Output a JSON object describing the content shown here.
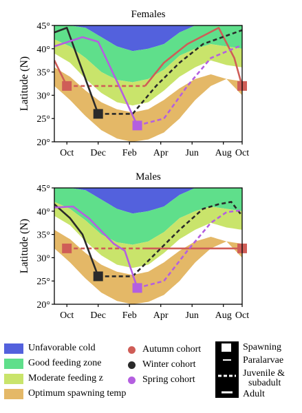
{
  "colors": {
    "unfavorable": "#5361dd",
    "good": "#5fdf8b",
    "moderate": "#c9e46b",
    "optimum": "#e4b867",
    "autumn": "#cf5d57",
    "winter": "#2a2a2a",
    "spring": "#b45fe0"
  },
  "chart_data": [
    {
      "type": "line",
      "title": "Females",
      "ylabel": "Latitude (N)",
      "ylim": [
        20,
        45
      ],
      "yticks": [
        "20°",
        "25°",
        "30°",
        "35°",
        "40°",
        "45°"
      ],
      "xlim": [
        0,
        12
      ],
      "xticks": [
        {
          "x": 0.8,
          "label": "Oct"
        },
        {
          "x": 2.8,
          "label": "Dec"
        },
        {
          "x": 4.8,
          "label": "Feb"
        },
        {
          "x": 6.8,
          "label": "Apr"
        },
        {
          "x": 8.8,
          "label": "Jun"
        },
        {
          "x": 10.8,
          "label": "Aug"
        },
        {
          "x": 12.8,
          "label": "Oct"
        }
      ],
      "zones": {
        "unfavorable_lower": [
          [
            0,
            45
          ],
          [
            1,
            45
          ],
          [
            2,
            44.5
          ],
          [
            3,
            42.5
          ],
          [
            4,
            40.5
          ],
          [
            5,
            39.5
          ],
          [
            6,
            40
          ],
          [
            7,
            41
          ],
          [
            8,
            43.5
          ],
          [
            9,
            45
          ],
          [
            12,
            45
          ]
        ],
        "good_lower": [
          [
            0,
            42
          ],
          [
            1,
            40.5
          ],
          [
            2,
            38
          ],
          [
            3,
            35
          ],
          [
            4,
            33.3
          ],
          [
            5,
            32.8
          ],
          [
            6,
            33.5
          ],
          [
            7,
            35.5
          ],
          [
            8,
            38.5
          ],
          [
            9,
            40
          ],
          [
            10,
            41
          ],
          [
            11,
            40.5
          ],
          [
            12,
            40
          ]
        ],
        "moderate_lower": [
          [
            0,
            39
          ],
          [
            1,
            37
          ],
          [
            2,
            33.5
          ],
          [
            3,
            30.5
          ],
          [
            4,
            28.5
          ],
          [
            5,
            27.8
          ],
          [
            6,
            28.5
          ],
          [
            7,
            31
          ],
          [
            8,
            34
          ],
          [
            9,
            36
          ],
          [
            10,
            37.5
          ],
          [
            11,
            36.5
          ],
          [
            12,
            36
          ]
        ],
        "optimum_upper": [
          [
            0,
            36
          ],
          [
            1,
            34
          ],
          [
            2,
            31
          ],
          [
            3,
            28.5
          ],
          [
            4,
            27
          ],
          [
            5,
            26.3
          ],
          [
            6,
            27
          ],
          [
            7,
            29
          ],
          [
            8,
            31.5
          ],
          [
            9,
            33.5
          ],
          [
            10,
            34.5
          ],
          [
            11,
            33.5
          ],
          [
            12,
            33
          ]
        ],
        "optimum_lower": [
          [
            0,
            32
          ],
          [
            1,
            29
          ],
          [
            2,
            25.5
          ],
          [
            3,
            22.5
          ],
          [
            4,
            20.7
          ],
          [
            5,
            20
          ],
          [
            6,
            20.5
          ],
          [
            7,
            22
          ],
          [
            8,
            25
          ],
          [
            9,
            29
          ],
          [
            10,
            32
          ],
          [
            11,
            33.5
          ],
          [
            12,
            30
          ]
        ]
      },
      "series": [
        {
          "name": "Autumn cohort",
          "color_key": "autumn",
          "adult": [
            [
              0,
              37.5
            ],
            [
              0.8,
              32
            ]
          ],
          "juvenile": [
            [
              0.8,
              32
            ],
            [
              5.8,
              32
            ]
          ],
          "paralarvae_adult": [
            [
              5.8,
              32
            ],
            [
              7,
              37
            ],
            [
              8.5,
              41
            ],
            [
              10.5,
              44.5
            ],
            [
              11.5,
              38
            ],
            [
              12,
              32
            ]
          ],
          "spawning": [
            [
              0.8,
              32
            ],
            [
              12,
              32
            ]
          ]
        },
        {
          "name": "Winter cohort",
          "color_key": "winter",
          "adult": [
            [
              0,
              43.5
            ],
            [
              0.8,
              44.5
            ],
            [
              2.8,
              26
            ]
          ],
          "juvenile": [
            [
              2.8,
              26
            ],
            [
              5,
              26
            ],
            [
              6.5,
              32
            ],
            [
              8,
              37
            ],
            [
              9.5,
              41
            ],
            [
              12,
              44
            ]
          ],
          "spawning": [
            [
              2.8,
              26
            ]
          ]
        },
        {
          "name": "Spring cohort",
          "color_key": "spring",
          "adult": [
            [
              0,
              40.5
            ],
            [
              1.8,
              42.5
            ],
            [
              2.8,
              41.5
            ],
            [
              4,
              33
            ],
            [
              5.3,
              23.5
            ]
          ],
          "juvenile": [
            [
              5.3,
              23.5
            ],
            [
              7,
              25
            ],
            [
              8.5,
              32
            ],
            [
              10,
              38
            ],
            [
              12,
              40.8
            ]
          ],
          "spawning": [
            [
              5.3,
              23.5
            ]
          ]
        }
      ]
    },
    {
      "type": "line",
      "title": "Males",
      "ylabel": "Latitude (N)",
      "ylim": [
        20,
        45
      ],
      "yticks": [
        "20°",
        "25°",
        "30°",
        "35°",
        "40°",
        "45°"
      ],
      "xlim": [
        0,
        12
      ],
      "xticks": [
        {
          "x": 0.8,
          "label": "Oct"
        },
        {
          "x": 2.8,
          "label": "Dec"
        },
        {
          "x": 4.8,
          "label": "Feb"
        },
        {
          "x": 6.8,
          "label": "Apr"
        },
        {
          "x": 8.8,
          "label": "Jun"
        },
        {
          "x": 10.8,
          "label": "Aug"
        },
        {
          "x": 12.8,
          "label": "Oct"
        }
      ],
      "zones": {
        "unfavorable_lower": [
          [
            0,
            45
          ],
          [
            1,
            45
          ],
          [
            2,
            44.5
          ],
          [
            3,
            42.5
          ],
          [
            4,
            40.5
          ],
          [
            5,
            39.5
          ],
          [
            6,
            40
          ],
          [
            7,
            41
          ],
          [
            8,
            43.5
          ],
          [
            9,
            45
          ],
          [
            12,
            45
          ]
        ],
        "good_lower": [
          [
            0,
            42
          ],
          [
            1,
            40.5
          ],
          [
            2,
            38
          ],
          [
            3,
            35
          ],
          [
            4,
            33.3
          ],
          [
            5,
            32.8
          ],
          [
            6,
            33.5
          ],
          [
            7,
            35.5
          ],
          [
            8,
            38.5
          ],
          [
            9,
            40
          ],
          [
            10,
            41
          ],
          [
            11,
            40.5
          ],
          [
            12,
            40
          ]
        ],
        "moderate_lower": [
          [
            0,
            39
          ],
          [
            1,
            37
          ],
          [
            2,
            33.5
          ],
          [
            3,
            30.5
          ],
          [
            4,
            28.5
          ],
          [
            5,
            27.8
          ],
          [
            6,
            28.5
          ],
          [
            7,
            31
          ],
          [
            8,
            34
          ],
          [
            9,
            36
          ],
          [
            10,
            37.5
          ],
          [
            11,
            36.5
          ],
          [
            12,
            36
          ]
        ],
        "optimum_upper": [
          [
            0,
            36
          ],
          [
            1,
            34
          ],
          [
            2,
            31
          ],
          [
            3,
            28.5
          ],
          [
            4,
            27
          ],
          [
            5,
            26.3
          ],
          [
            6,
            27
          ],
          [
            7,
            29
          ],
          [
            8,
            31.5
          ],
          [
            9,
            33.5
          ],
          [
            10,
            34.5
          ],
          [
            11,
            33.5
          ],
          [
            12,
            33
          ]
        ],
        "optimum_lower": [
          [
            0,
            32
          ],
          [
            1,
            29
          ],
          [
            2,
            25.5
          ],
          [
            3,
            22.5
          ],
          [
            4,
            20.7
          ],
          [
            5,
            20
          ],
          [
            6,
            20.5
          ],
          [
            7,
            22
          ],
          [
            8,
            25
          ],
          [
            9,
            29
          ],
          [
            10,
            32
          ],
          [
            11,
            33.5
          ],
          [
            12,
            30
          ]
        ]
      },
      "series": [
        {
          "name": "Autumn cohort",
          "color_key": "autumn",
          "adult": [
            [
              5.8,
              32
            ],
            [
              12,
              32
            ]
          ],
          "juvenile": [
            [
              0.8,
              32
            ],
            [
              5.8,
              32
            ]
          ],
          "spawning": [
            [
              0.8,
              32
            ],
            [
              12,
              32
            ]
          ]
        },
        {
          "name": "Winter cohort",
          "color_key": "winter",
          "adult": [
            [
              0,
              41.5
            ],
            [
              1,
              38.5
            ],
            [
              1.8,
              35
            ],
            [
              2.8,
              26
            ]
          ],
          "juvenile": [
            [
              2.8,
              26
            ],
            [
              5,
              26
            ],
            [
              6.5,
              31
            ],
            [
              8,
              36
            ],
            [
              9.5,
              40.5
            ],
            [
              10.5,
              41.5
            ],
            [
              11.3,
              42
            ],
            [
              12,
              39
            ]
          ],
          "spawning": [
            [
              2.8,
              26
            ]
          ]
        },
        {
          "name": "Spring cohort",
          "color_key": "spring",
          "adult": [
            [
              0,
              40.8
            ],
            [
              1.2,
              41
            ],
            [
              2.2,
              38.5
            ],
            [
              3.8,
              33
            ],
            [
              4.5,
              31.5
            ],
            [
              5.3,
              23.5
            ]
          ],
          "juvenile": [
            [
              5.3,
              23.5
            ],
            [
              7,
              25
            ],
            [
              8.5,
              31.5
            ],
            [
              10,
              37.5
            ],
            [
              11,
              39.8
            ],
            [
              12,
              40.2
            ]
          ],
          "spawning": [
            [
              5.3,
              23.5
            ]
          ]
        }
      ]
    }
  ],
  "legend": {
    "zones": [
      {
        "label": "Unfavorable cold",
        "color_key": "unfavorable"
      },
      {
        "label": "Good feeding zone",
        "color_key": "good"
      },
      {
        "label": "Moderate feeding z",
        "color_key": "moderate"
      },
      {
        "label": "Optimum spawning temp",
        "color_key": "optimum"
      }
    ],
    "cohorts": [
      {
        "label": "Autumn cohort",
        "color_key": "autumn"
      },
      {
        "label": "Winter cohort",
        "color_key": "winter"
      },
      {
        "label": "Spring cohort",
        "color_key": "spring"
      }
    ],
    "key": {
      "spawning": "Spawning",
      "paralarvae": "Paralarvae",
      "juvenile_1": "Juvenile &",
      "juvenile_2": "subadult",
      "adult": "Adult"
    }
  }
}
